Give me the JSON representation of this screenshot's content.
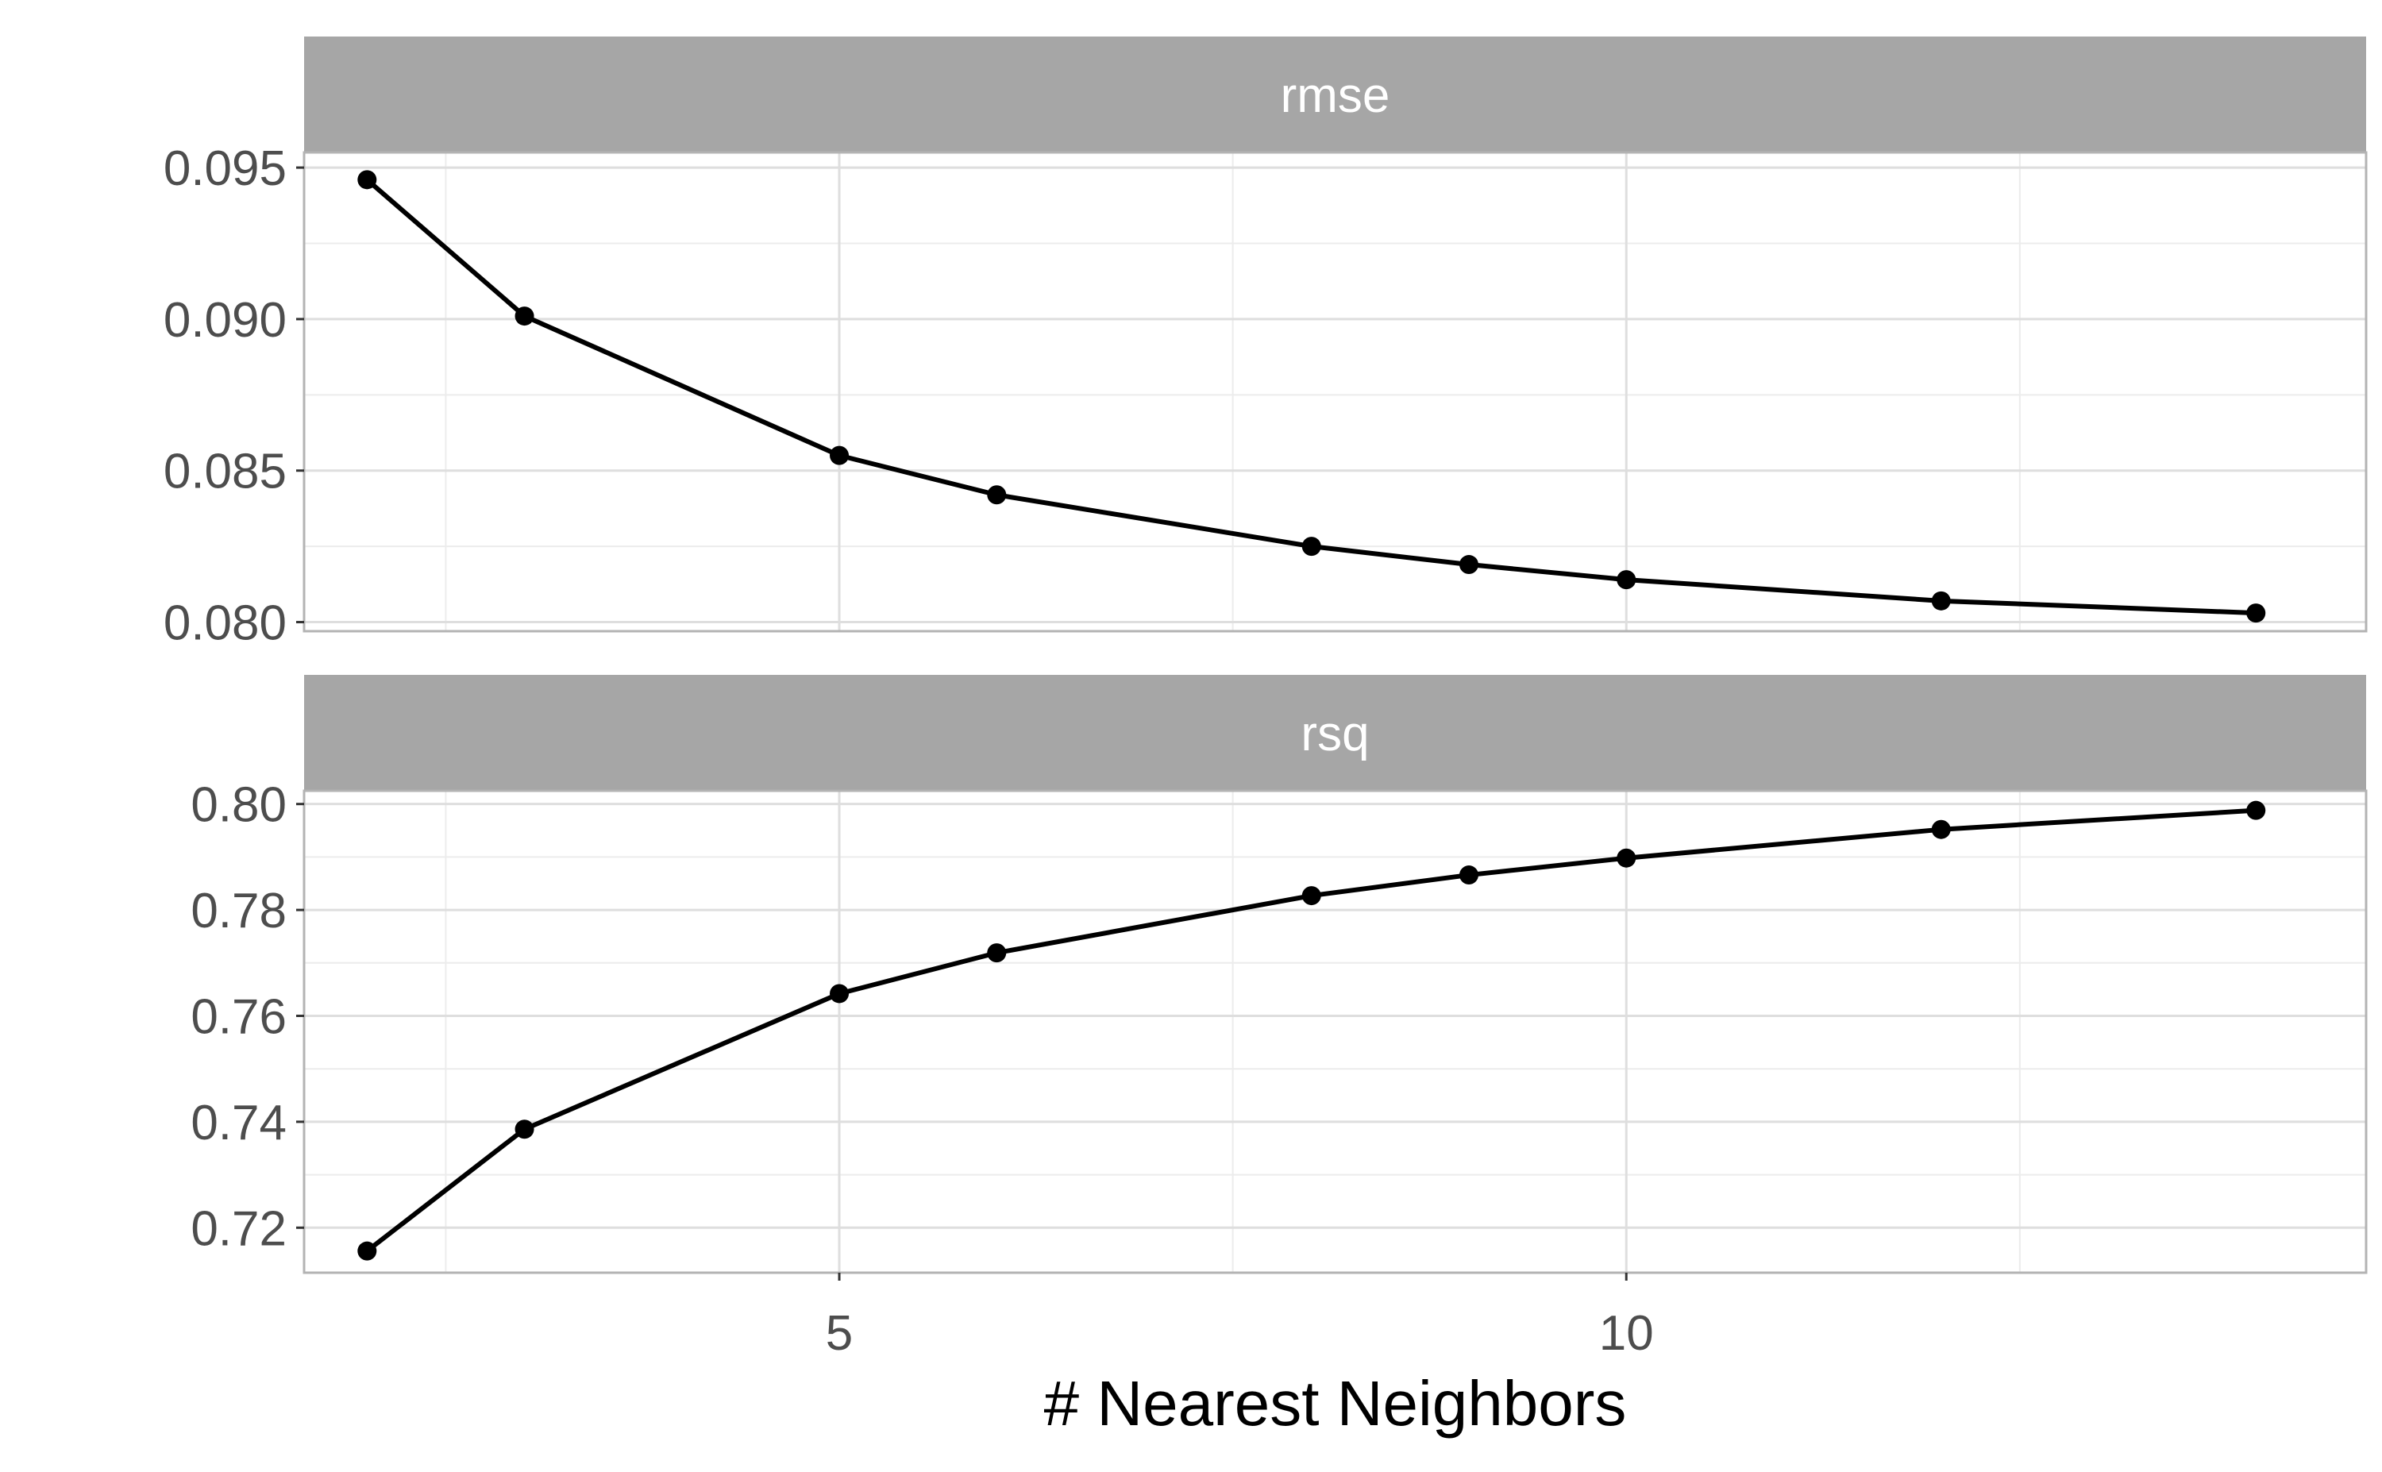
{
  "chart_data": {
    "type": "line",
    "xlabel": "# Nearest Neighbors",
    "x_ticks": [
      5,
      10
    ],
    "x_minor_ticks": [
      2.5,
      7.5,
      12.5
    ],
    "xlim": [
      1.6,
      14.7
    ],
    "panels": [
      {
        "strip": "rmse",
        "ylim": [
          0.0797,
          0.0955
        ],
        "y_ticks": [
          0.08,
          0.085,
          0.09,
          0.095
        ],
        "y_tick_labels": [
          "0.080",
          "0.085",
          "0.090",
          "0.095"
        ],
        "y_minor_ticks": [
          0.0825,
          0.0875,
          0.0925
        ],
        "x": [
          2,
          3,
          5,
          6,
          8,
          9,
          10,
          12,
          14
        ],
        "y": [
          0.0946,
          0.0901,
          0.0855,
          0.0842,
          0.0825,
          0.0819,
          0.0814,
          0.0807,
          0.0803
        ]
      },
      {
        "strip": "rsq",
        "ylim": [
          0.7115,
          0.8025
        ],
        "y_ticks": [
          0.72,
          0.74,
          0.76,
          0.78,
          0.8
        ],
        "y_tick_labels": [
          "0.72",
          "0.74",
          "0.76",
          "0.78",
          "0.80"
        ],
        "y_minor_ticks": [
          0.71,
          0.73,
          0.75,
          0.77,
          0.79
        ],
        "x": [
          2,
          3,
          5,
          6,
          8,
          9,
          10,
          12,
          14
        ],
        "y": [
          0.7156,
          0.7386,
          0.7642,
          0.7719,
          0.7827,
          0.7866,
          0.7898,
          0.7952,
          0.7988
        ]
      }
    ],
    "line_color": "#000000",
    "strip_fill": "#a6a6a6",
    "grid_color": "#dedede",
    "panel_border_color": "#b3b3b3",
    "grid": true,
    "legend": "none"
  }
}
